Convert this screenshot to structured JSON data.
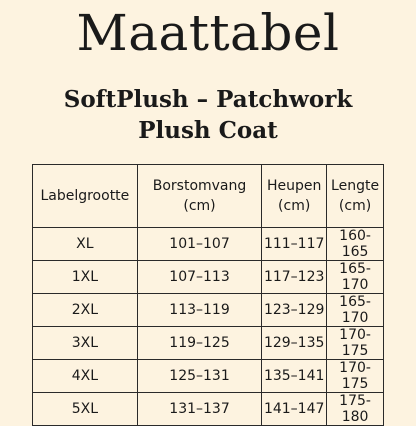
{
  "title": "Maattabel",
  "subtitle_line1": "SoftPlush – Patchwork",
  "subtitle_line2": "Plush Coat",
  "table": {
    "headers": [
      {
        "line1": "Labelgrootte",
        "line2": ""
      },
      {
        "line1": "Borstomvang",
        "line2": "(cm)"
      },
      {
        "line1": "Heupen",
        "line2": "(cm)"
      },
      {
        "line1": "Lengte",
        "line2": "(cm)"
      }
    ],
    "rows": [
      [
        "XL",
        "101–107",
        "111–117",
        "160-165"
      ],
      [
        "1XL",
        "107–113",
        "117–123",
        "165-170"
      ],
      [
        "2XL",
        "113–119",
        "123–129",
        "165-170"
      ],
      [
        "3XL",
        "119–125",
        "129–135",
        "170-175"
      ],
      [
        "4XL",
        "125–131",
        "135–141",
        "170-175"
      ],
      [
        "5XL",
        "131–137",
        "141–147",
        "175-180"
      ]
    ]
  }
}
